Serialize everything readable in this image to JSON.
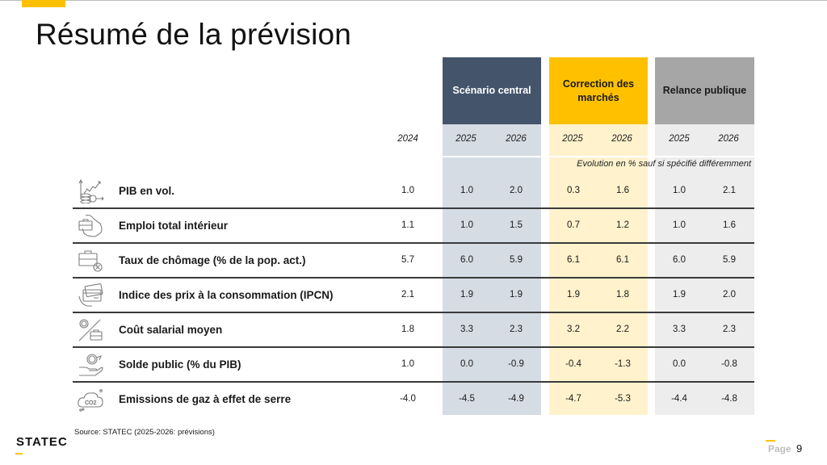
{
  "title": "Résumé de la prévision",
  "scenarios": [
    {
      "name": "Scénario central",
      "years": [
        "2025",
        "2026"
      ],
      "color": "#44546a"
    },
    {
      "name": "Correction des marchés",
      "years": [
        "2025",
        "2026"
      ],
      "color": "#ffc000"
    },
    {
      "name": "Relance publique",
      "years": [
        "2025",
        "2026"
      ],
      "color": "#a6a6a6"
    }
  ],
  "base_year": "2024",
  "unit_note": "Evolution en % sauf si spécifié différemment",
  "rows": [
    {
      "label": "PIB en vol.",
      "icon": "gdp-growth-icon",
      "values": [
        "1.0",
        "1.0",
        "2.0",
        "0.3",
        "1.6",
        "1.0",
        "2.1"
      ]
    },
    {
      "label": "Emploi total intérieur",
      "icon": "employment-briefcase-icon",
      "values": [
        "1.1",
        "1.0",
        "1.5",
        "0.7",
        "1.2",
        "1.0",
        "1.6"
      ]
    },
    {
      "label": "Taux de chômage (% de la pop. act.)",
      "icon": "unemployment-briefcase-icon",
      "values": [
        "5.7",
        "6.0",
        "5.9",
        "6.1",
        "6.1",
        "6.0",
        "5.9"
      ]
    },
    {
      "label": "Indice des prix à la consommation (IPCN)",
      "icon": "credit-card-icon",
      "values": [
        "2.1",
        "1.9",
        "1.9",
        "1.9",
        "1.8",
        "1.9",
        "2.0"
      ]
    },
    {
      "label": "Coût salarial moyen",
      "icon": "wage-cost-icon",
      "values": [
        "1.8",
        "3.3",
        "2.3",
        "3.2",
        "2.2",
        "3.3",
        "2.3"
      ]
    },
    {
      "label": "Solde public (% du PIB)",
      "icon": "public-balance-icon",
      "values": [
        "1.0",
        "0.0",
        "-0.9",
        "-0.4",
        "-1.3",
        "0.0",
        "-0.8"
      ]
    },
    {
      "label": "Emissions de gaz à effet de serre",
      "icon": "co2-cloud-icon",
      "values": [
        "-4.0",
        "-4.5",
        "-4.9",
        "-4.7",
        "-5.3",
        "-4.4",
        "-4.8"
      ]
    }
  ],
  "source": "Source: STATEC (2025-2026: prévisions)",
  "logo": "STATEC",
  "footer": {
    "page_label": "Page",
    "page_number": "9"
  },
  "accent_color": "#ffc000"
}
